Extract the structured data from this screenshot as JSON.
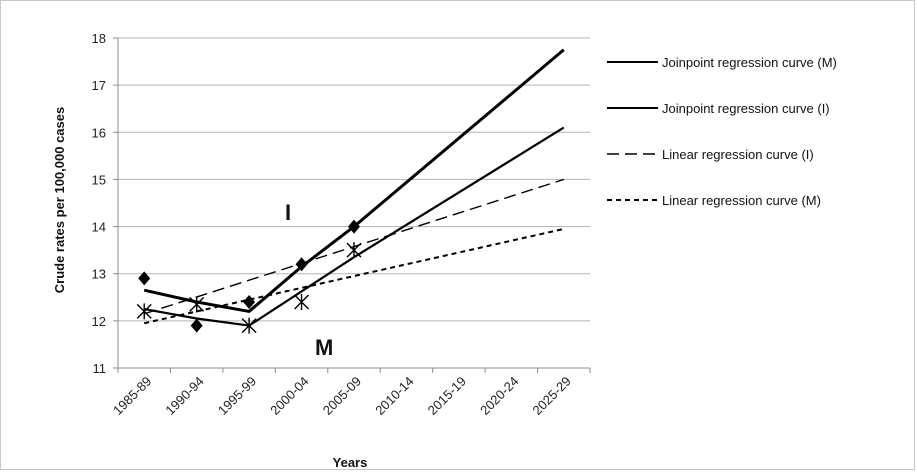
{
  "chart_data": {
    "type": "line",
    "title": "",
    "xlabel": "Years",
    "ylabel": "Crude rates per 100,000 cases",
    "categories": [
      "1985-89",
      "1990-94",
      "1995-99",
      "2000-04",
      "2005-09",
      "2010-14",
      "2015-19",
      "2020-24",
      "2025-29"
    ],
    "yticks": [
      11,
      12,
      13,
      14,
      15,
      16,
      17,
      18
    ],
    "ylim": [
      11,
      18
    ],
    "grid": "horizontal",
    "legend_position": "right",
    "series": [
      {
        "name": "Joinpoint regression curve (M)",
        "style": "solid-thick",
        "values": [
          12.65,
          12.4,
          12.2,
          13.15,
          14.0,
          null,
          null,
          null,
          17.75
        ]
      },
      {
        "name": "Joinpoint regression curve (I)",
        "style": "solid",
        "values": [
          12.25,
          12.05,
          11.9,
          null,
          13.35,
          null,
          null,
          null,
          16.1
        ]
      },
      {
        "name": "Linear regression curve (I)",
        "style": "long-dash",
        "values": [
          12.15,
          null,
          null,
          null,
          null,
          null,
          null,
          null,
          15.0
        ]
      },
      {
        "name": "Linear regression curve (M)",
        "style": "short-dash",
        "values": [
          11.95,
          null,
          null,
          null,
          null,
          null,
          null,
          null,
          13.95
        ]
      }
    ],
    "observed_points": [
      {
        "marker": "diamond",
        "values": [
          12.9,
          11.9,
          12.4,
          13.2,
          14.0
        ]
      },
      {
        "marker": "star",
        "values": [
          12.2,
          12.35,
          11.9,
          12.4,
          13.5
        ]
      }
    ],
    "annotations": [
      "I",
      "M"
    ]
  }
}
